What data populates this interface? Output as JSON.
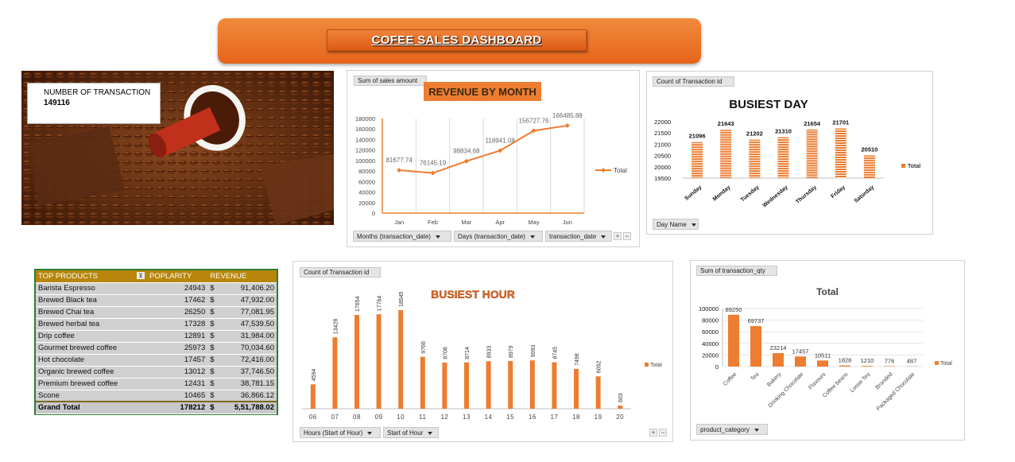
{
  "dashboard": {
    "title": "COFEE SALES DASHBOARD"
  },
  "kpi": {
    "label": "NUMBER OF TRANSACTION",
    "value": "149116"
  },
  "revenue_chart": {
    "field_button": "Sum of sales amount",
    "title": "REVENUE BY MONTH",
    "legend": "Total",
    "filters": [
      "Months (transaction_date)",
      "Days (transaction_date)",
      "transaction_date"
    ],
    "accent": "#ed7d31"
  },
  "day_chart": {
    "field_button": "Count of Transaction id",
    "title": "BUSIEST DAY",
    "legend": "Total",
    "filter": "Day Name"
  },
  "products_table": {
    "headers": [
      "TOP PRODUCTS",
      "POPLARITY",
      "REVENUE"
    ],
    "rows": [
      {
        "name": "Barista Espresso",
        "pop": "24943",
        "cur": "$",
        "rev": "91,406.20"
      },
      {
        "name": "Brewed Black tea",
        "pop": "17462",
        "cur": "$",
        "rev": "47,932.00"
      },
      {
        "name": "Brewed Chai tea",
        "pop": "26250",
        "cur": "$",
        "rev": "77,081.95"
      },
      {
        "name": "Brewed herbal tea",
        "pop": "17328",
        "cur": "$",
        "rev": "47,539.50"
      },
      {
        "name": "Drip coffee",
        "pop": "12891",
        "cur": "$",
        "rev": "31,984.00"
      },
      {
        "name": "Gourmet brewed coffee",
        "pop": "25973",
        "cur": "$",
        "rev": "70,034.60"
      },
      {
        "name": "Hot chocolate",
        "pop": "17457",
        "cur": "$",
        "rev": "72,416.00"
      },
      {
        "name": "Organic brewed coffee",
        "pop": "13012",
        "cur": "$",
        "rev": "37,746.50"
      },
      {
        "name": "Premium brewed coffee",
        "pop": "12431",
        "cur": "$",
        "rev": "38,781.15"
      },
      {
        "name": "Scone",
        "pop": "10465",
        "cur": "$",
        "rev": "36,866.12"
      }
    ],
    "total": {
      "name": "Grand Total",
      "pop": "178212",
      "cur": "$",
      "rev": "5,51,788.02"
    }
  },
  "hour_chart": {
    "field_button": "Count of Transaction id",
    "title": "BUSIEST HOUR",
    "legend": "Total",
    "filters": [
      "Hours (Start of Hour)",
      "Start of Hour"
    ]
  },
  "category_chart": {
    "field_button": "Sum of transaction_qty",
    "title": "Total",
    "legend": "Total",
    "filter": "product_category"
  },
  "chart_data": [
    {
      "type": "line",
      "title": "REVENUE BY MONTH",
      "categories": [
        "Jan",
        "Feb",
        "Mar",
        "Apr",
        "May",
        "Jun"
      ],
      "series": [
        {
          "name": "Total",
          "values": [
            81677.74,
            76145.19,
            98834.68,
            118941.08,
            156727.76,
            166485.88
          ]
        }
      ],
      "ylim": [
        0,
        180000
      ],
      "yticks": [
        "0",
        "20000",
        "40000",
        "60000",
        "80000",
        "100000",
        "120000",
        "140000",
        "160000",
        "180000"
      ],
      "grid": "vertical",
      "legend": "right"
    },
    {
      "type": "bar",
      "title": "BUSIEST DAY",
      "categories": [
        "Sunday",
        "Monday",
        "Tuesday",
        "Wednesday",
        "Thursday",
        "Friday",
        "Saturday"
      ],
      "series": [
        {
          "name": "Total",
          "values": [
            21096,
            21643,
            21202,
            21310,
            21654,
            21701,
            20510
          ]
        }
      ],
      "ylim": [
        19500,
        22000
      ],
      "yticks": [
        "19500",
        "20000",
        "20500",
        "21000",
        "21500",
        "22000"
      ],
      "legend": "right"
    },
    {
      "type": "bar",
      "title": "BUSIEST HOUR",
      "categories": [
        "06",
        "07",
        "08",
        "09",
        "10",
        "11",
        "12",
        "13",
        "14",
        "15",
        "16",
        "17",
        "18",
        "19",
        "20"
      ],
      "series": [
        {
          "name": "Total",
          "values": [
            4594,
            13428,
            17654,
            17764,
            18545,
            9766,
            8708,
            8714,
            8933,
            8979,
            9093,
            8745,
            7498,
            6092,
            603
          ]
        }
      ],
      "ylim": [
        0,
        19000
      ],
      "legend": "right"
    },
    {
      "type": "bar",
      "title": "Total",
      "categories": [
        "Coffee",
        "Tea",
        "Bakery",
        "Drinking Chocolate",
        "Flavours",
        "Coffee beans",
        "Loose Tea",
        "Branded",
        "Packaged Chocolate"
      ],
      "series": [
        {
          "name": "Total",
          "values": [
            89250,
            69737,
            23214,
            17457,
            10511,
            1828,
            1210,
            776,
            487
          ]
        }
      ],
      "ylim": [
        0,
        100000
      ],
      "yticks": [
        "0",
        "20000",
        "40000",
        "60000",
        "80000",
        "100000"
      ],
      "legend": "right"
    }
  ]
}
